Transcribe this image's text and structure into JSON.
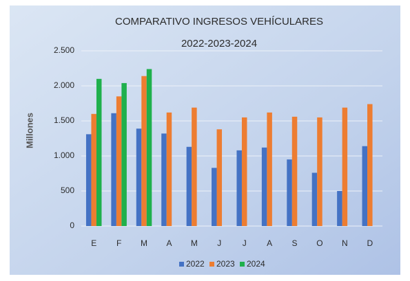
{
  "chart_data": {
    "type": "bar",
    "title": "COMPARATIVO INGRESOS VEHÍCULARES",
    "subtitle": "2022-2023-2024",
    "y_label": "Millones",
    "categories": [
      "E",
      "F",
      "M",
      "A",
      "M",
      "J",
      "J",
      "A",
      "S",
      "O",
      "N",
      "D"
    ],
    "series": [
      {
        "name": "2022",
        "color": "#4472c4",
        "values": [
          1310,
          1610,
          1390,
          1320,
          1130,
          830,
          1080,
          1120,
          950,
          760,
          500,
          1140
        ]
      },
      {
        "name": "2023",
        "color": "#ed7d31",
        "values": [
          1600,
          1850,
          2140,
          1620,
          1690,
          1380,
          1550,
          1620,
          1560,
          1550,
          1690,
          1740
        ]
      },
      {
        "name": "2024",
        "color": "#1fb04c",
        "values": [
          2100,
          2040,
          2240,
          null,
          null,
          null,
          null,
          null,
          null,
          null,
          null,
          null
        ]
      }
    ],
    "ylim": [
      0,
      2500
    ],
    "yticks": [
      0,
      500,
      {
        "value": 1000,
        "label": "1.000"
      },
      {
        "value": 1500,
        "label": "1.500"
      },
      {
        "value": 2000,
        "label": "2.000"
      },
      {
        "value": 2500,
        "label": "2.500"
      }
    ],
    "grid": true,
    "legend": "bottom"
  }
}
